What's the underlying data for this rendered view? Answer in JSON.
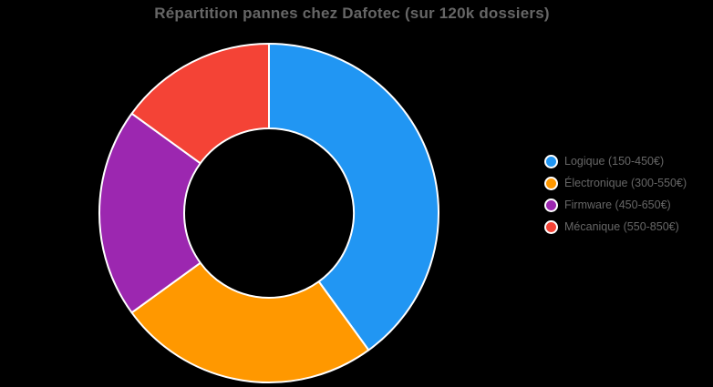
{
  "chart_data": {
    "type": "pie",
    "variant": "doughnut",
    "title": "Répartition pannes chez Dafotec (sur 120k dossiers)",
    "categories": [
      "Logique (150-450€)",
      "Électronique (300-550€)",
      "Firmware (450-650€)",
      "Mécanique (550-850€)"
    ],
    "values": [
      40,
      25,
      20,
      15
    ],
    "values_unit": "percent",
    "total_reference": "120k dossiers",
    "colors": [
      "#2196F3",
      "#FF9800",
      "#9C27B0",
      "#F44336"
    ],
    "series_names": [
      "logique",
      "electronique",
      "firmware",
      "mecanique"
    ],
    "legend_position": "right",
    "start_angle_deg": 0,
    "direction": "clockwise",
    "hole_ratio": 0.5,
    "background_color": "#000000",
    "segment_border_color": "#ffffff",
    "title_color": "#666666",
    "legend_text_color": "#666666"
  }
}
